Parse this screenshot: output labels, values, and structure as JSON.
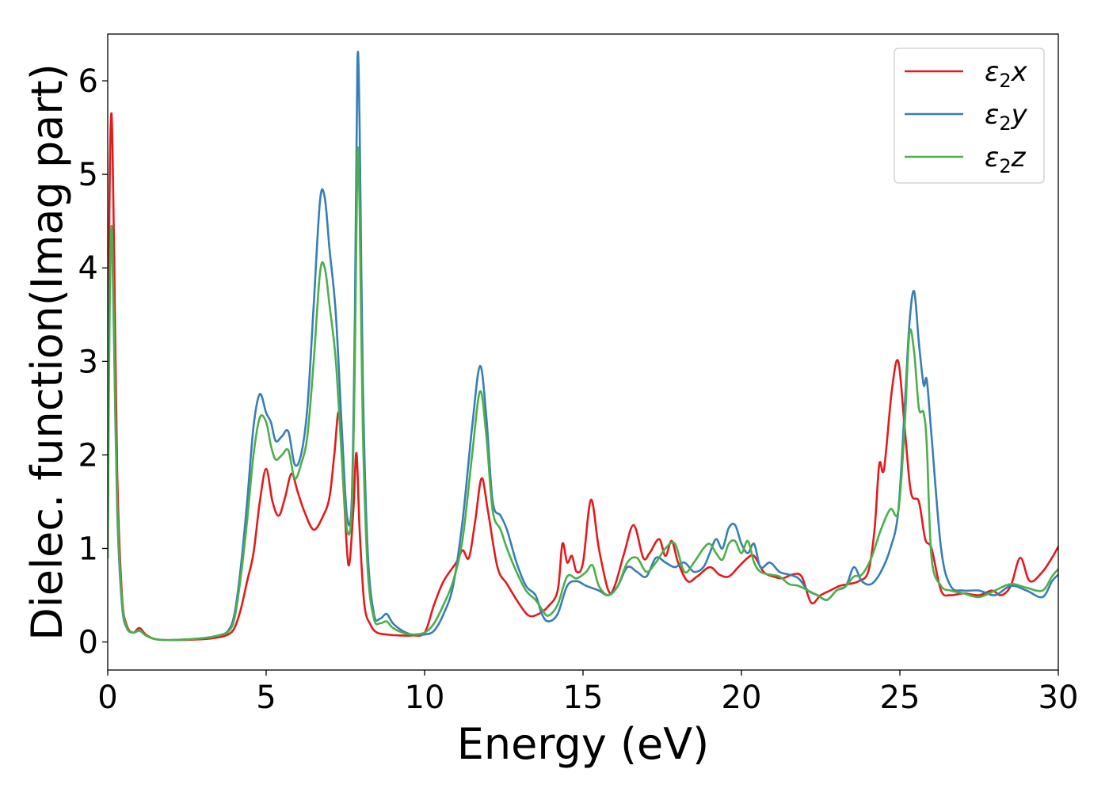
{
  "chart_data": {
    "type": "line",
    "title": "",
    "xlabel": "Energy (eV)",
    "ylabel": "Dielec. function(Imag part)",
    "xlim": [
      0,
      30
    ],
    "ylim": [
      -0.3,
      6.5
    ],
    "xticks": [
      0,
      5,
      10,
      15,
      20,
      25,
      30
    ],
    "yticks": [
      0,
      1,
      2,
      3,
      4,
      5,
      6
    ],
    "grid": false,
    "legend_position": "top-right",
    "series": [
      {
        "name": "ε₂x",
        "legend": {
          "base": "ε",
          "sub": "2",
          "comp": "x"
        },
        "color": "#e41a1c",
        "x": [
          0,
          0.05,
          0.12,
          0.2,
          0.3,
          0.45,
          0.6,
          0.8,
          1.0,
          1.2,
          1.5,
          2.0,
          3.0,
          3.5,
          3.8,
          4.0,
          4.2,
          4.4,
          4.6,
          4.8,
          5.0,
          5.2,
          5.4,
          5.6,
          5.8,
          6.0,
          6.2,
          6.5,
          6.8,
          7.0,
          7.15,
          7.3,
          7.45,
          7.6,
          7.75,
          7.85,
          7.95,
          8.1,
          8.3,
          8.5,
          8.8,
          9.2,
          9.6,
          10.0,
          10.3,
          10.6,
          11.0,
          11.2,
          11.4,
          11.6,
          11.8,
          12.0,
          12.3,
          12.6,
          13.0,
          13.3,
          13.6,
          13.9,
          14.2,
          14.35,
          14.5,
          14.65,
          14.8,
          15.0,
          15.25,
          15.5,
          15.8,
          16.0,
          16.3,
          16.6,
          16.9,
          17.1,
          17.4,
          17.6,
          17.8,
          18.0,
          18.3,
          18.6,
          19.0,
          19.3,
          19.6,
          19.9,
          20.2,
          20.4,
          20.7,
          21.0,
          21.3,
          21.6,
          21.9,
          22.2,
          22.5,
          22.8,
          23.1,
          23.4,
          23.7,
          24.0,
          24.2,
          24.35,
          24.5,
          24.75,
          24.95,
          25.15,
          25.35,
          25.6,
          25.8,
          26.0,
          26.3,
          26.6,
          27.0,
          27.5,
          27.9,
          28.2,
          28.5,
          28.8,
          29.1,
          29.5,
          29.8,
          30.0
        ],
        "y": [
          1.2,
          4.5,
          5.65,
          4.2,
          1.8,
          0.5,
          0.18,
          0.1,
          0.15,
          0.08,
          0.03,
          0.02,
          0.03,
          0.05,
          0.08,
          0.15,
          0.35,
          0.65,
          0.95,
          1.5,
          1.85,
          1.5,
          1.35,
          1.55,
          1.8,
          1.6,
          1.4,
          1.2,
          1.35,
          1.55,
          2.0,
          2.45,
          1.6,
          0.82,
          1.4,
          2.02,
          1.2,
          0.4,
          0.18,
          0.1,
          0.08,
          0.07,
          0.07,
          0.1,
          0.4,
          0.65,
          0.85,
          0.98,
          0.9,
          1.3,
          1.75,
          1.4,
          0.8,
          0.62,
          0.4,
          0.28,
          0.3,
          0.38,
          0.55,
          1.05,
          0.85,
          0.92,
          0.75,
          0.85,
          1.52,
          1.0,
          0.55,
          0.6,
          0.95,
          1.25,
          0.9,
          0.95,
          1.1,
          0.92,
          1.08,
          0.85,
          0.65,
          0.7,
          0.8,
          0.72,
          0.7,
          0.8,
          0.9,
          0.92,
          0.75,
          0.7,
          0.68,
          0.72,
          0.7,
          0.42,
          0.5,
          0.55,
          0.6,
          0.62,
          0.65,
          0.75,
          1.2,
          1.9,
          1.85,
          2.7,
          3.0,
          2.3,
          1.6,
          1.5,
          1.1,
          1.0,
          0.55,
          0.5,
          0.52,
          0.5,
          0.55,
          0.5,
          0.6,
          0.9,
          0.65,
          0.75,
          0.9,
          1.02
        ]
      },
      {
        "name": "ε₂y",
        "legend": {
          "base": "ε",
          "sub": "2",
          "comp": "y"
        },
        "color": "#377eb8",
        "x": [
          0,
          0.05,
          0.12,
          0.2,
          0.3,
          0.45,
          0.6,
          0.8,
          1.0,
          1.2,
          1.5,
          2.0,
          3.0,
          3.5,
          3.8,
          4.0,
          4.2,
          4.4,
          4.6,
          4.8,
          5.0,
          5.15,
          5.3,
          5.5,
          5.7,
          5.9,
          6.1,
          6.3,
          6.5,
          6.7,
          6.85,
          7.0,
          7.2,
          7.4,
          7.55,
          7.7,
          7.8,
          7.88,
          7.95,
          8.05,
          8.2,
          8.4,
          8.6,
          8.8,
          9.0,
          9.3,
          9.6,
          10.0,
          10.3,
          10.6,
          10.9,
          11.2,
          11.5,
          11.75,
          11.95,
          12.15,
          12.4,
          12.6,
          12.9,
          13.2,
          13.5,
          13.7,
          13.9,
          14.2,
          14.5,
          14.8,
          15.1,
          15.5,
          15.8,
          16.1,
          16.4,
          16.7,
          17.0,
          17.3,
          17.6,
          17.9,
          18.2,
          18.5,
          18.8,
          19.0,
          19.2,
          19.4,
          19.6,
          19.8,
          20.0,
          20.2,
          20.4,
          20.6,
          20.9,
          21.2,
          21.5,
          21.8,
          22.1,
          22.4,
          22.7,
          23.0,
          23.3,
          23.55,
          23.8,
          24.1,
          24.4,
          24.7,
          24.95,
          25.15,
          25.3,
          25.45,
          25.6,
          25.75,
          25.85,
          26.0,
          26.3,
          26.6,
          27.0,
          27.5,
          28.0,
          28.5,
          29.0,
          29.5,
          29.8,
          30.0
        ],
        "y": [
          1.0,
          3.5,
          4.4,
          3.2,
          1.4,
          0.4,
          0.15,
          0.1,
          0.13,
          0.07,
          0.03,
          0.02,
          0.04,
          0.07,
          0.12,
          0.3,
          0.8,
          1.5,
          2.3,
          2.65,
          2.45,
          2.35,
          2.15,
          2.2,
          2.25,
          1.9,
          2.0,
          2.5,
          3.6,
          4.72,
          4.75,
          4.2,
          3.5,
          2.2,
          1.35,
          1.5,
          3.5,
          6.2,
          5.5,
          2.8,
          1.0,
          0.3,
          0.25,
          0.3,
          0.2,
          0.12,
          0.08,
          0.08,
          0.12,
          0.3,
          0.6,
          1.3,
          2.3,
          2.95,
          2.4,
          1.5,
          1.35,
          1.2,
          0.85,
          0.6,
          0.5,
          0.3,
          0.22,
          0.3,
          0.6,
          0.65,
          0.6,
          0.55,
          0.5,
          0.6,
          0.8,
          0.75,
          0.7,
          0.9,
          0.85,
          0.8,
          0.85,
          0.75,
          0.8,
          0.95,
          1.1,
          1.0,
          1.22,
          1.25,
          1.05,
          0.95,
          1.05,
          0.8,
          0.85,
          0.75,
          0.72,
          0.68,
          0.55,
          0.5,
          0.45,
          0.55,
          0.6,
          0.8,
          0.65,
          0.62,
          0.75,
          1.0,
          1.4,
          2.5,
          3.4,
          3.75,
          3.2,
          2.75,
          2.8,
          2.2,
          1.0,
          0.6,
          0.55,
          0.55,
          0.5,
          0.6,
          0.55,
          0.48,
          0.65,
          0.72
        ]
      },
      {
        "name": "ε₂z",
        "legend": {
          "base": "ε",
          "sub": "2",
          "comp": "z"
        },
        "color": "#4daf4a",
        "x": [
          0,
          0.05,
          0.12,
          0.2,
          0.3,
          0.45,
          0.6,
          0.8,
          1.0,
          1.2,
          1.5,
          2.0,
          3.0,
          3.5,
          3.8,
          4.0,
          4.2,
          4.4,
          4.6,
          4.8,
          5.0,
          5.15,
          5.3,
          5.5,
          5.7,
          5.9,
          6.1,
          6.3,
          6.5,
          6.7,
          6.85,
          7.0,
          7.2,
          7.4,
          7.55,
          7.7,
          7.8,
          7.88,
          7.95,
          8.05,
          8.2,
          8.4,
          8.6,
          8.8,
          9.0,
          9.3,
          9.6,
          10.0,
          10.3,
          10.6,
          10.9,
          11.2,
          11.5,
          11.75,
          11.95,
          12.15,
          12.4,
          12.6,
          12.9,
          13.2,
          13.5,
          13.7,
          13.9,
          14.2,
          14.5,
          14.8,
          15.1,
          15.3,
          15.5,
          15.8,
          16.1,
          16.4,
          16.7,
          17.0,
          17.3,
          17.6,
          17.9,
          18.2,
          18.5,
          18.8,
          19.0,
          19.2,
          19.4,
          19.6,
          19.8,
          20.0,
          20.2,
          20.4,
          20.6,
          20.9,
          21.2,
          21.5,
          21.8,
          22.1,
          22.4,
          22.7,
          23.0,
          23.3,
          23.55,
          23.8,
          24.1,
          24.4,
          24.7,
          24.95,
          25.15,
          25.3,
          25.45,
          25.6,
          25.75,
          25.85,
          26.0,
          26.3,
          26.6,
          27.0,
          27.5,
          28.0,
          28.5,
          29.0,
          29.5,
          29.8,
          30.0
        ],
        "y": [
          0.9,
          3.2,
          4.45,
          3.3,
          1.5,
          0.45,
          0.16,
          0.1,
          0.12,
          0.07,
          0.03,
          0.02,
          0.04,
          0.07,
          0.11,
          0.25,
          0.7,
          1.3,
          2.0,
          2.4,
          2.35,
          2.1,
          1.95,
          2.0,
          2.05,
          1.75,
          1.9,
          2.2,
          3.0,
          3.95,
          4.0,
          3.6,
          3.0,
          1.9,
          1.2,
          1.4,
          3.0,
          5.2,
          4.6,
          2.3,
          0.8,
          0.25,
          0.2,
          0.22,
          0.15,
          0.1,
          0.08,
          0.1,
          0.2,
          0.4,
          0.65,
          1.1,
          2.0,
          2.68,
          2.2,
          1.4,
          1.2,
          1.0,
          0.75,
          0.55,
          0.45,
          0.35,
          0.28,
          0.4,
          0.7,
          0.68,
          0.75,
          0.82,
          0.6,
          0.5,
          0.6,
          0.85,
          0.9,
          0.75,
          0.85,
          1.0,
          1.05,
          0.75,
          0.85,
          1.0,
          1.05,
          0.95,
          0.88,
          1.05,
          1.08,
          0.95,
          1.08,
          0.85,
          0.75,
          0.72,
          0.7,
          0.62,
          0.6,
          0.55,
          0.5,
          0.45,
          0.55,
          0.6,
          0.7,
          0.72,
          0.9,
          1.2,
          1.42,
          1.4,
          2.3,
          3.3,
          3.1,
          2.5,
          2.45,
          2.1,
          0.9,
          0.6,
          0.55,
          0.52,
          0.48,
          0.55,
          0.62,
          0.58,
          0.55,
          0.7,
          0.78
        ]
      }
    ]
  }
}
